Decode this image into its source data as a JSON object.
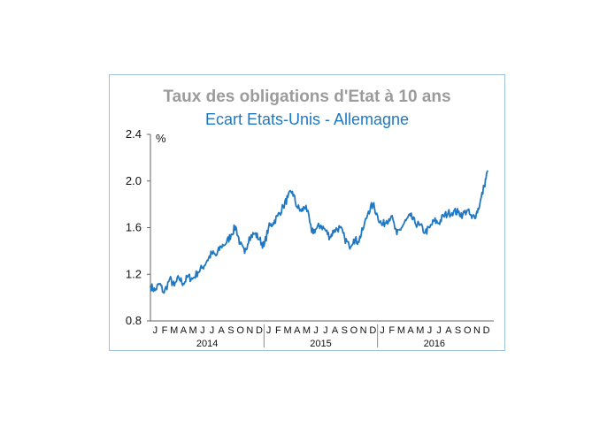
{
  "chart_data": {
    "type": "line",
    "title": "Taux des obligations d'Etat à 10 ans",
    "subtitle": "Ecart Etats-Unis - Allemagne",
    "ylabel": "%",
    "ylim": [
      0.8,
      2.4
    ],
    "yticks": [
      "0.8",
      "1.2",
      "1.6",
      "2.0",
      "2.4"
    ],
    "month_labels": [
      "J",
      "F",
      "M",
      "A",
      "M",
      "J",
      "J",
      "A",
      "S",
      "O",
      "N",
      "D"
    ],
    "years": [
      "2014",
      "2015",
      "2016"
    ],
    "line_color": "#1f78c1",
    "series": [
      {
        "name": "Ecart Etats-Unis - Allemagne",
        "months": [
          [
            2014.0,
            1.1
          ],
          [
            2014.04,
            1.06
          ],
          [
            2014.08,
            1.12
          ],
          [
            2014.12,
            1.04
          ],
          [
            2014.17,
            1.16
          ],
          [
            2014.21,
            1.1
          ],
          [
            2014.25,
            1.17
          ],
          [
            2014.29,
            1.12
          ],
          [
            2014.33,
            1.18
          ],
          [
            2014.37,
            1.16
          ],
          [
            2014.42,
            1.22
          ],
          [
            2014.46,
            1.26
          ],
          [
            2014.5,
            1.32
          ],
          [
            2014.54,
            1.38
          ],
          [
            2014.58,
            1.36
          ],
          [
            2014.62,
            1.44
          ],
          [
            2014.67,
            1.47
          ],
          [
            2014.71,
            1.54
          ],
          [
            2014.75,
            1.61
          ],
          [
            2014.79,
            1.46
          ],
          [
            2014.83,
            1.38
          ],
          [
            2014.87,
            1.52
          ],
          [
            2014.92,
            1.55
          ],
          [
            2014.96,
            1.5
          ],
          [
            2015.0,
            1.44
          ],
          [
            2015.04,
            1.6
          ],
          [
            2015.08,
            1.64
          ],
          [
            2015.12,
            1.7
          ],
          [
            2015.17,
            1.78
          ],
          [
            2015.21,
            1.86
          ],
          [
            2015.25,
            1.91
          ],
          [
            2015.29,
            1.78
          ],
          [
            2015.33,
            1.74
          ],
          [
            2015.37,
            1.79
          ],
          [
            2015.42,
            1.56
          ],
          [
            2015.46,
            1.59
          ],
          [
            2015.5,
            1.62
          ],
          [
            2015.54,
            1.58
          ],
          [
            2015.58,
            1.52
          ],
          [
            2015.62,
            1.58
          ],
          [
            2015.67,
            1.6
          ],
          [
            2015.71,
            1.51
          ],
          [
            2015.75,
            1.44
          ],
          [
            2015.79,
            1.5
          ],
          [
            2015.83,
            1.48
          ],
          [
            2015.87,
            1.58
          ],
          [
            2015.92,
            1.74
          ],
          [
            2015.96,
            1.8
          ],
          [
            2016.0,
            1.7
          ],
          [
            2016.04,
            1.62
          ],
          [
            2016.08,
            1.66
          ],
          [
            2016.12,
            1.7
          ],
          [
            2016.17,
            1.54
          ],
          [
            2016.21,
            1.6
          ],
          [
            2016.25,
            1.66
          ],
          [
            2016.29,
            1.7
          ],
          [
            2016.33,
            1.64
          ],
          [
            2016.37,
            1.62
          ],
          [
            2016.42,
            1.56
          ],
          [
            2016.46,
            1.6
          ],
          [
            2016.5,
            1.66
          ],
          [
            2016.54,
            1.64
          ],
          [
            2016.58,
            1.7
          ],
          [
            2016.62,
            1.72
          ],
          [
            2016.67,
            1.74
          ],
          [
            2016.71,
            1.73
          ],
          [
            2016.75,
            1.71
          ],
          [
            2016.79,
            1.75
          ],
          [
            2016.83,
            1.68
          ],
          [
            2016.87,
            1.72
          ],
          [
            2016.9,
            1.8
          ],
          [
            2016.94,
            1.96
          ],
          [
            2016.97,
            2.09
          ]
        ]
      }
    ]
  }
}
